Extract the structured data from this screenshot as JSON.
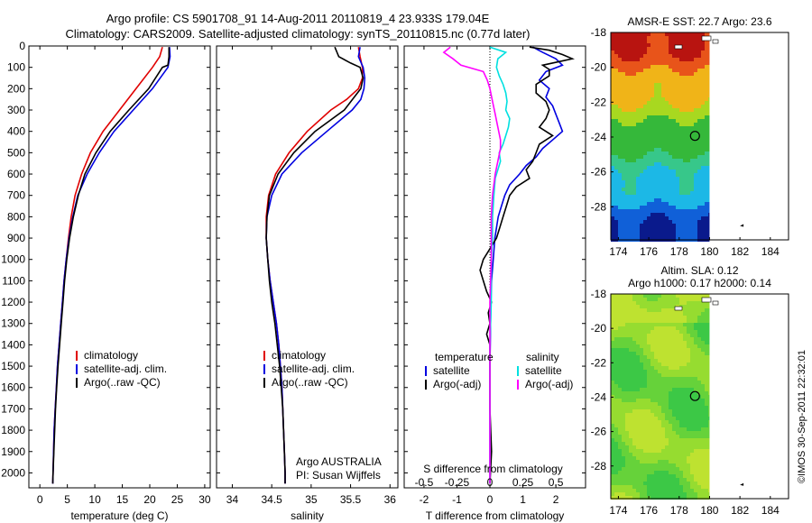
{
  "header": {
    "title_line1": "Argo profile: CS 5901708_91 14-Aug-2011 20110819_4 23.933S 179.04E",
    "title_line2": "Climatology: CARS2009. Satellite-adjusted climatology: synTS_20110815.nc (0.77d later)"
  },
  "footer": {
    "credit": "©IMOS 30-Sep-2011 22:32:01"
  },
  "colors": {
    "climatology": "#e00000",
    "satellite": "#0000e0",
    "argo": "#000000",
    "salinity_satellite": "#00e0e0",
    "salinity_argo": "#ff00ff"
  },
  "chart_data": [
    {
      "id": "temperature",
      "type": "line",
      "xlabel": "temperature (deg C)",
      "ylabel": "",
      "xlim": [
        -2,
        31
      ],
      "ylim": [
        2070,
        0
      ],
      "xticks": [
        0,
        5,
        10,
        15,
        20,
        25,
        30
      ],
      "yticks": [
        0,
        100,
        200,
        300,
        400,
        500,
        600,
        700,
        800,
        900,
        1000,
        1100,
        1200,
        1300,
        1400,
        1500,
        1600,
        1700,
        1800,
        1900,
        2000
      ],
      "legend": [
        "climatology",
        "satellite-adj. clim.",
        "Argo(..raw -QC)"
      ],
      "legend_position": "lower-right",
      "series": [
        {
          "name": "climatology",
          "color": "#e00000",
          "depth": [
            5,
            50,
            100,
            200,
            300,
            400,
            500,
            600,
            700,
            800,
            900,
            1000,
            1100,
            1200,
            1300,
            1400,
            1500,
            1600,
            1700,
            1800,
            1900,
            2000,
            2050
          ],
          "values": [
            22.3,
            21.8,
            20.5,
            17.5,
            14.5,
            11.5,
            9.2,
            7.6,
            6.4,
            5.7,
            5.2,
            4.8,
            4.4,
            4.1,
            3.8,
            3.5,
            3.2,
            3.0,
            2.8,
            2.6,
            2.5,
            2.4,
            2.35
          ]
        },
        {
          "name": "satellite-adj. clim.",
          "color": "#0000e0",
          "depth": [
            5,
            50,
            100,
            200,
            300,
            400,
            500,
            600,
            700,
            800,
            900,
            1000,
            1100,
            1200,
            1300,
            1400,
            1500,
            1600,
            1700,
            1800,
            1900,
            2000,
            2050
          ],
          "values": [
            23.6,
            23.7,
            23.3,
            20.5,
            17.0,
            13.5,
            10.8,
            8.6,
            6.9,
            6.0,
            5.3,
            4.8,
            4.4,
            4.1,
            3.8,
            3.5,
            3.2,
            3.0,
            2.8,
            2.6,
            2.5,
            2.4,
            2.35
          ]
        },
        {
          "name": "Argo(..raw -QC)",
          "color": "#000000",
          "depth": [
            5,
            50,
            90,
            100,
            200,
            300,
            400,
            500,
            600,
            700,
            800,
            900,
            1000,
            1100,
            1200,
            1300,
            1400,
            1500,
            1600,
            1700,
            1800,
            1900,
            2000,
            2050
          ],
          "values": [
            23.5,
            23.5,
            23.3,
            22.3,
            19.8,
            16.2,
            12.8,
            10.2,
            8.2,
            7.0,
            6.1,
            5.4,
            4.9,
            4.5,
            4.2,
            3.9,
            3.6,
            3.3,
            3.05,
            2.85,
            2.7,
            2.55,
            2.4,
            2.35
          ]
        }
      ]
    },
    {
      "id": "salinity",
      "type": "line",
      "xlabel": "salinity",
      "ylabel": "",
      "xlim": [
        33.8,
        36.1
      ],
      "ylim": [
        2070,
        0
      ],
      "xticks": [
        34,
        34.5,
        35,
        35.5,
        36
      ],
      "legend": [
        "climatology",
        "satellite-adj. clim.",
        "Argo(..raw -QC)"
      ],
      "legend_position": "lower-right",
      "annotation_line1": "Argo AUSTRALIA",
      "annotation_line2": "PI: Susan Wijffels",
      "series": [
        {
          "name": "climatology",
          "color": "#e00000",
          "depth": [
            5,
            50,
            100,
            150,
            200,
            250,
            300,
            400,
            500,
            600,
            700,
            800,
            900,
            1000,
            1100,
            1200,
            1300,
            1400,
            1500,
            1600,
            1700,
            1800,
            1900,
            2000,
            2050
          ],
          "values": [
            35.6,
            35.62,
            35.65,
            35.65,
            35.6,
            35.45,
            35.25,
            34.95,
            34.72,
            34.55,
            34.46,
            34.43,
            34.43,
            34.45,
            34.48,
            34.52,
            34.56,
            34.59,
            34.61,
            34.63,
            34.64,
            34.65,
            34.66,
            34.67,
            34.67
          ]
        },
        {
          "name": "satellite-adj. clim.",
          "color": "#0000e0",
          "depth": [
            5,
            50,
            100,
            150,
            200,
            250,
            300,
            400,
            500,
            600,
            700,
            800,
            900,
            1000,
            1100,
            1200,
            1300,
            1400,
            1500,
            1600,
            1700,
            1800,
            1900,
            2000,
            2050
          ],
          "values": [
            35.62,
            35.6,
            35.66,
            35.68,
            35.67,
            35.63,
            35.52,
            35.2,
            34.88,
            34.63,
            34.5,
            34.44,
            34.43,
            34.45,
            34.48,
            34.52,
            34.56,
            34.59,
            34.61,
            34.63,
            34.64,
            34.65,
            34.66,
            34.67,
            34.67
          ]
        },
        {
          "name": "Argo(..raw -QC)",
          "color": "#000000",
          "depth": [
            5,
            50,
            80,
            100,
            150,
            200,
            300,
            400,
            500,
            600,
            700,
            800,
            900,
            1000,
            1100,
            1200,
            1300,
            1400,
            1500,
            1600,
            1700,
            1800,
            1900,
            2000,
            2050
          ],
          "values": [
            35.3,
            35.35,
            35.5,
            35.62,
            35.66,
            35.63,
            35.42,
            35.05,
            34.78,
            34.58,
            34.47,
            34.44,
            34.43,
            34.45,
            34.47,
            34.5,
            34.54,
            34.57,
            34.6,
            34.62,
            34.64,
            34.65,
            34.66,
            34.67,
            34.67
          ]
        }
      ]
    },
    {
      "id": "difference",
      "type": "line",
      "xlabel": "T difference from climatology",
      "xlabel_top": "S difference from climatology",
      "xlim": [
        -2.6,
        2.9
      ],
      "ylim": [
        2070,
        0
      ],
      "xticks": [
        -2,
        -1,
        0,
        1,
        2
      ],
      "s_ticks": [
        -0.5,
        -0.25,
        0,
        0.25,
        0.5
      ],
      "s_tick_labels": [
        "-0.5",
        "-0.25",
        "0",
        "0.25",
        "0.5"
      ],
      "legend_left_title": "temperature",
      "legend_right_title": "salinity",
      "legend_left": [
        "satellite",
        "Argo(-adj)"
      ],
      "legend_right": [
        "satellite",
        "Argo(-adj)"
      ],
      "series": [
        {
          "name": "T satellite",
          "color": "#0000e0",
          "depth": [
            5,
            30,
            60,
            90,
            120,
            160,
            200,
            240,
            280,
            320,
            360,
            400,
            440,
            480,
            520,
            560,
            600,
            650,
            700,
            750,
            800,
            900,
            1000,
            1100,
            1200,
            1300,
            1400,
            1500,
            1700,
            1900,
            2050
          ],
          "values": [
            1.3,
            1.6,
            2.0,
            2.2,
            1.7,
            1.5,
            1.8,
            1.7,
            1.9,
            2.0,
            2.1,
            2.2,
            1.9,
            1.6,
            1.4,
            1.1,
            0.9,
            0.6,
            0.45,
            0.35,
            0.25,
            0.15,
            0.1,
            0.05,
            0.03,
            0.02,
            0.01,
            0.0,
            0.0,
            0.0,
            0.0
          ]
        },
        {
          "name": "T Argo(-adj)",
          "color": "#000000",
          "depth": [
            5,
            20,
            40,
            60,
            90,
            110,
            140,
            180,
            220,
            260,
            300,
            340,
            380,
            420,
            460,
            500,
            540,
            580,
            620,
            660,
            700,
            750,
            800,
            850,
            900,
            950,
            1000,
            1050,
            1100,
            1150,
            1200,
            1250,
            1300,
            1350,
            1400,
            1500,
            1700,
            1900,
            2050
          ],
          "values": [
            1.2,
            1.8,
            2.2,
            2.5,
            1.6,
            1.8,
            1.8,
            1.4,
            1.4,
            1.7,
            1.8,
            1.7,
            1.5,
            1.9,
            1.5,
            1.4,
            1.3,
            1.1,
            1.2,
            0.8,
            0.6,
            0.5,
            0.4,
            0.3,
            0.2,
            0.0,
            -0.2,
            -0.3,
            -0.2,
            -0.1,
            0.05,
            -0.05,
            0.0,
            -0.1,
            0.0,
            0.0,
            0.0,
            0.05,
            0.0
          ]
        },
        {
          "name": "S satellite",
          "color": "#00e0e0",
          "depth": [
            5,
            30,
            60,
            100,
            140,
            180,
            220,
            260,
            300,
            340,
            380,
            420,
            460,
            500,
            540,
            580,
            620,
            700,
            800,
            900,
            1000,
            1200,
            1400,
            1600,
            1800,
            2050
          ],
          "values": [
            0.0,
            0.12,
            0.06,
            0.05,
            0.07,
            0.1,
            0.12,
            0.13,
            0.12,
            0.15,
            0.14,
            0.12,
            0.1,
            0.07,
            0.08,
            0.06,
            0.04,
            0.03,
            0.02,
            0.02,
            0.01,
            0.01,
            0.0,
            0.0,
            0.0,
            0.0
          ]
        },
        {
          "name": "S Argo(-adj)",
          "color": "#ff00ff",
          "depth": [
            5,
            30,
            60,
            90,
            120,
            160,
            200,
            260,
            320,
            380,
            440,
            480,
            540,
            600,
            700,
            800,
            900,
            1000,
            1200,
            1400,
            1600,
            1800,
            2050
          ],
          "values": [
            -0.3,
            -0.35,
            -0.28,
            -0.22,
            -0.05,
            -0.02,
            0.0,
            0.02,
            0.04,
            0.06,
            0.08,
            0.08,
            0.06,
            0.04,
            0.02,
            0.01,
            0.01,
            0.01,
            0.0,
            0.0,
            0.0,
            0.0,
            0.0
          ]
        }
      ]
    },
    {
      "id": "sst_map",
      "type": "heatmap",
      "title": "AMSR-E SST: 22.7 Argo: 23.6",
      "xlim": [
        173.5,
        185.2
      ],
      "ylim": [
        -29.9,
        -18.0
      ],
      "xticks": [
        174,
        176,
        178,
        180,
        182,
        184
      ],
      "yticks": [
        -28,
        -26,
        -24,
        -22,
        -20,
        -18
      ],
      "marker": {
        "lon": 179.04,
        "lat": -23.933
      },
      "colors": [
        "#0a1a8c",
        "#1060d8",
        "#1cb8e6",
        "#37c78a",
        "#35b83a",
        "#a8d820",
        "#f0b418",
        "#e8541a",
        "#b81410"
      ]
    },
    {
      "id": "sla_map",
      "type": "heatmap",
      "title_line1": "Altim. SLA: 0.12",
      "title_line2": "Argo h1000: 0.17 h2000: 0.14",
      "xlim": [
        173.5,
        185.2
      ],
      "ylim": [
        -29.9,
        -18.0
      ],
      "xticks": [
        174,
        176,
        178,
        180,
        182,
        184
      ],
      "yticks": [
        -28,
        -26,
        -24,
        -22,
        -20,
        -18
      ],
      "marker": {
        "lon": 179.04,
        "lat": -23.933
      },
      "colors": [
        "#3cc846",
        "#66d23a",
        "#96dc30",
        "#bee230"
      ]
    }
  ]
}
